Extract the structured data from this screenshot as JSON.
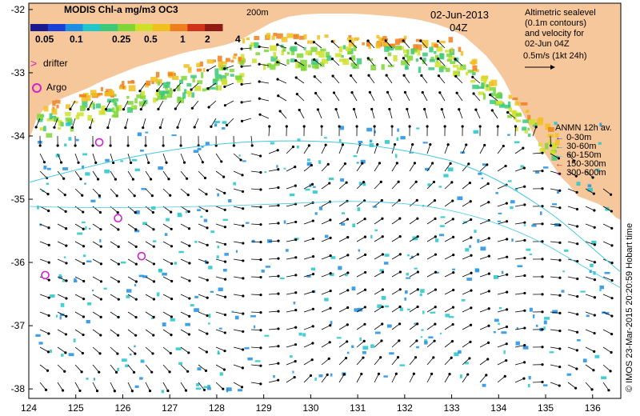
{
  "map": {
    "colorbar_title": "MODIS Chl-a mg/m3 OC3",
    "colorbar_ticks": [
      "0.05",
      "0.1",
      "0.25",
      "0.5",
      "1",
      "2",
      "4"
    ],
    "colorbar_colors": [
      "#1a1a8c",
      "#1c3fd6",
      "#1f8fe3",
      "#22c7c9",
      "#3cc97a",
      "#7fd636",
      "#cfe02a",
      "#f0c020",
      "#ef7f1d",
      "#d0331a",
      "#8f1a16"
    ],
    "depth_label": "200m",
    "date": "02-Jun-2013",
    "time": "04Z",
    "legend_drifter": "drifter",
    "legend_argo": "Argo",
    "altimetry_text": [
      "Altimetric sealevel",
      "(0.1m contours)",
      "and velocity for",
      "02-Jun 04Z"
    ],
    "velocity_scale": "0.5m/s (1kt 24h)",
    "anmn_title": "ANMN 12h av.",
    "anmn_depths": [
      {
        "label": "0-30m",
        "color": "#1e1eff"
      },
      {
        "label": "30-60m",
        "color": "#20a040"
      },
      {
        "label": "60-150m",
        "color": "#20c8d8"
      },
      {
        "label": "150-300m",
        "color": "#e02020"
      },
      {
        "label": "300-600m",
        "color": "#d020d0"
      }
    ],
    "credit": "© IMOS 23-Mar-2015 20:20:59 Hobart time",
    "lon_ticks": [
      "124",
      "125",
      "126",
      "127",
      "128",
      "129",
      "130",
      "131",
      "132",
      "133",
      "134",
      "135",
      "136"
    ],
    "lat_ticks": [
      "-32",
      "-33",
      "-34",
      "-35",
      "-36",
      "-37",
      "-38"
    ],
    "land_color": "#f7c79c",
    "argo_positions": [
      [
        125.5,
        -34.1
      ],
      [
        125.9,
        -35.3
      ],
      [
        126.4,
        -35.9
      ],
      [
        124.35,
        -36.2
      ]
    ]
  }
}
